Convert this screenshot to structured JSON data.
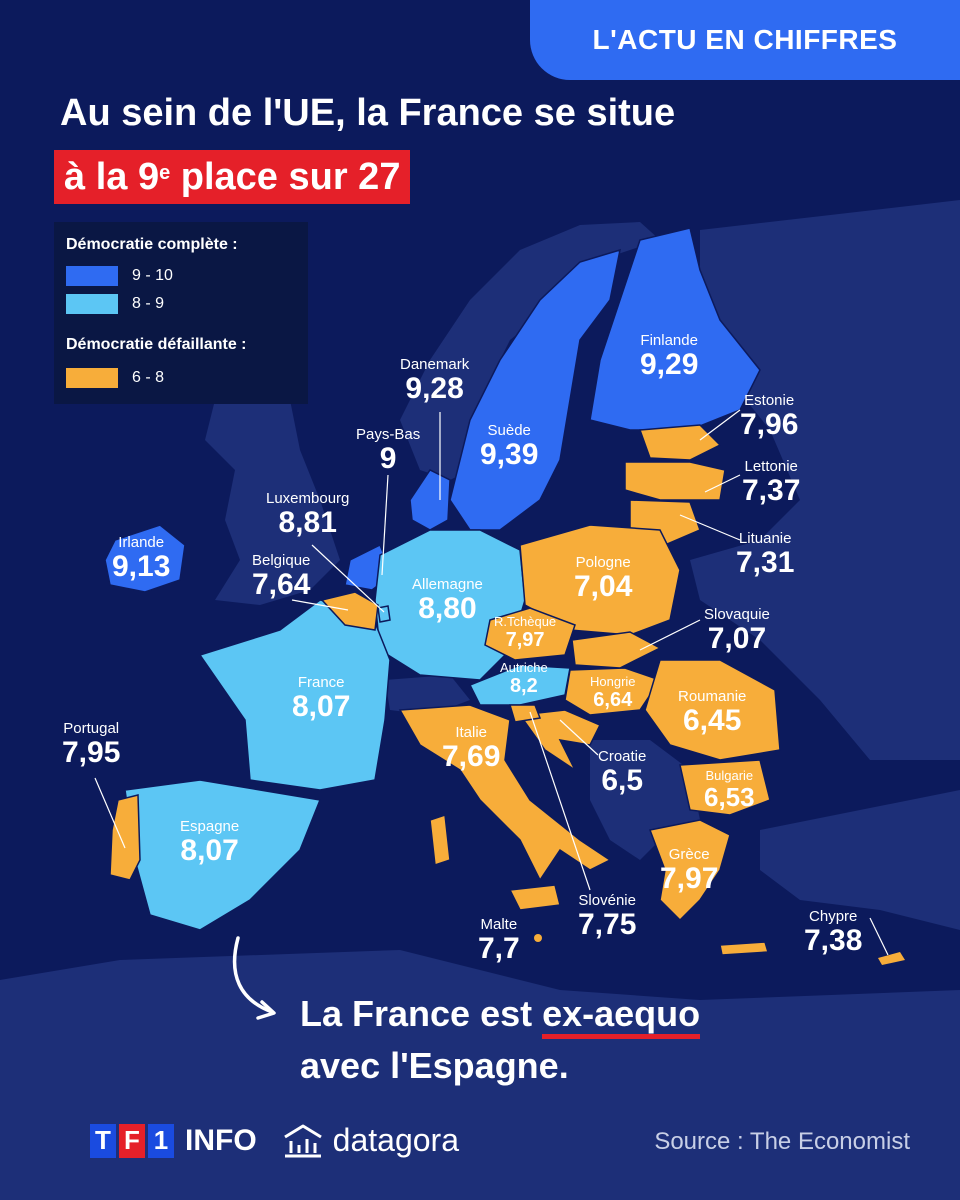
{
  "header": {
    "badge": "L'ACTU EN CHIFFRES",
    "title_line1": "Au sein de l'UE, la France se situe",
    "title_line2_pre": "à la 9",
    "title_line2_sup": "e",
    "title_line2_post": " place sur 27"
  },
  "legend": {
    "complete_header": "Démocratie complète :",
    "flawed_header": "Démocratie défaillante :",
    "items": [
      {
        "label": "9 - 10",
        "color": "#2f6bf2"
      },
      {
        "label": "8 - 9",
        "color": "#5cc6f4"
      },
      {
        "label": "6 - 8",
        "color": "#f7ad3a"
      }
    ]
  },
  "colors": {
    "background": "#0c1a5c",
    "non_eu_land": "#1d2f78",
    "tier_9_10": "#2f6bf2",
    "tier_8_9": "#5cc6f4",
    "tier_6_8": "#f7ad3a",
    "accent_red": "#e52029"
  },
  "countries": [
    {
      "name": "Finlande",
      "value": "9,29",
      "score": 9.29
    },
    {
      "name": "Danemark",
      "value": "9,28",
      "score": 9.28
    },
    {
      "name": "Suède",
      "value": "9,39",
      "score": 9.39
    },
    {
      "name": "Pays-Bas",
      "value": "9",
      "score": 9
    },
    {
      "name": "Irlande",
      "value": "9,13",
      "score": 9.13
    },
    {
      "name": "Luxembourg",
      "value": "8,81",
      "score": 8.81
    },
    {
      "name": "Belgique",
      "value": "7,64",
      "score": 7.64
    },
    {
      "name": "Allemagne",
      "value": "8,80",
      "score": 8.8
    },
    {
      "name": "France",
      "value": "8,07",
      "score": 8.07
    },
    {
      "name": "Espagne",
      "value": "8,07",
      "score": 8.07
    },
    {
      "name": "Portugal",
      "value": "7,95",
      "score": 7.95
    },
    {
      "name": "Estonie",
      "value": "7,96",
      "score": 7.96
    },
    {
      "name": "Lettonie",
      "value": "7,37",
      "score": 7.37
    },
    {
      "name": "Lituanie",
      "value": "7,31",
      "score": 7.31
    },
    {
      "name": "Pologne",
      "value": "7,04",
      "score": 7.04
    },
    {
      "name": "R.Tchèque",
      "value": "7,97",
      "score": 7.97
    },
    {
      "name": "Slovaquie",
      "value": "7,07",
      "score": 7.07
    },
    {
      "name": "Autriche",
      "value": "8,2",
      "score": 8.2
    },
    {
      "name": "Hongrie",
      "value": "6,64",
      "score": 6.64
    },
    {
      "name": "Roumanie",
      "value": "6,45",
      "score": 6.45
    },
    {
      "name": "Italie",
      "value": "7,69",
      "score": 7.69
    },
    {
      "name": "Croatie",
      "value": "6,5",
      "score": 6.5
    },
    {
      "name": "Bulgarie",
      "value": "6,53",
      "score": 6.53
    },
    {
      "name": "Grèce",
      "value": "7,97",
      "score": 7.97
    },
    {
      "name": "Slovénie",
      "value": "7,75",
      "score": 7.75
    },
    {
      "name": "Malte",
      "value": "7,7",
      "score": 7.7
    },
    {
      "name": "Chypre",
      "value": "7,38",
      "score": 7.38
    }
  ],
  "conclusion": {
    "line1_pre": "La France est ",
    "line1_emph": "ex-aequo",
    "line2": "avec l'Espagne."
  },
  "footer": {
    "tf1_letters": [
      "T",
      "F",
      "1"
    ],
    "info": "INFO",
    "datagora": "datagora",
    "source": "Source : The Economist"
  }
}
